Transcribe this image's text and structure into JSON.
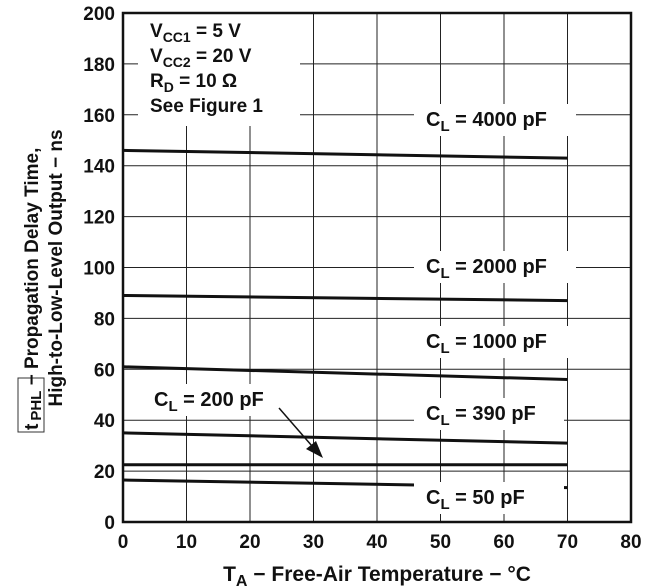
{
  "chart_data": {
    "type": "line",
    "xlabel_main": "T",
    "xlabel_sub": "A",
    "xlabel_rest": " − Free-Air Temperature − °C",
    "ylabel_prefix": "t",
    "ylabel_sub": "PHL",
    "ylabel_line1_rest": " − Propagation Delay Time,",
    "ylabel_line2": "High-to-Low-Level Output − ns",
    "xlim": [
      0,
      80
    ],
    "ylim": [
      0,
      200
    ],
    "x_ticks": [
      "0",
      "10",
      "20",
      "30",
      "40",
      "50",
      "60",
      "70",
      "80"
    ],
    "y_ticks": [
      "0",
      "20",
      "40",
      "60",
      "80",
      "100",
      "120",
      "140",
      "160",
      "180",
      "200"
    ],
    "grid": true,
    "conditions": [
      {
        "main": "V",
        "sub": "CC1",
        "rest": " = 5 V"
      },
      {
        "main": "V",
        "sub": "CC2",
        "rest": " = 20 V"
      },
      {
        "main": "R",
        "sub": "D",
        "rest": " = 10 Ω"
      },
      {
        "main": "See Figure 1",
        "sub": "",
        "rest": ""
      }
    ],
    "series": [
      {
        "name": "C_L = 4000 pF",
        "label_main": "C",
        "label_sub": "L",
        "label_rest": " = 4000 pF",
        "x": [
          0,
          70
        ],
        "y": [
          146,
          143
        ]
      },
      {
        "name": "C_L = 2000 pF",
        "label_main": "C",
        "label_sub": "L",
        "label_rest": " = 2000 pF",
        "x": [
          0,
          70
        ],
        "y": [
          89,
          87
        ]
      },
      {
        "name": "C_L = 1000 pF",
        "label_main": "C",
        "label_sub": "L",
        "label_rest": " = 1000 pF",
        "x": [
          0,
          70
        ],
        "y": [
          61,
          56
        ]
      },
      {
        "name": "C_L = 390 pF",
        "label_main": "C",
        "label_sub": "L",
        "label_rest": " = 390 pF",
        "x": [
          0,
          70
        ],
        "y": [
          35,
          31
        ]
      },
      {
        "name": "C_L = 200 pF",
        "label_main": "C",
        "label_sub": "L",
        "label_rest": " = 200 pF",
        "x": [
          0,
          70
        ],
        "y": [
          22.5,
          22.5
        ]
      },
      {
        "name": "C_L = 50 pF",
        "label_main": "C",
        "label_sub": "L",
        "label_rest": " = 50 pF",
        "x": [
          0,
          70
        ],
        "y": [
          16.5,
          13.5
        ]
      }
    ]
  }
}
